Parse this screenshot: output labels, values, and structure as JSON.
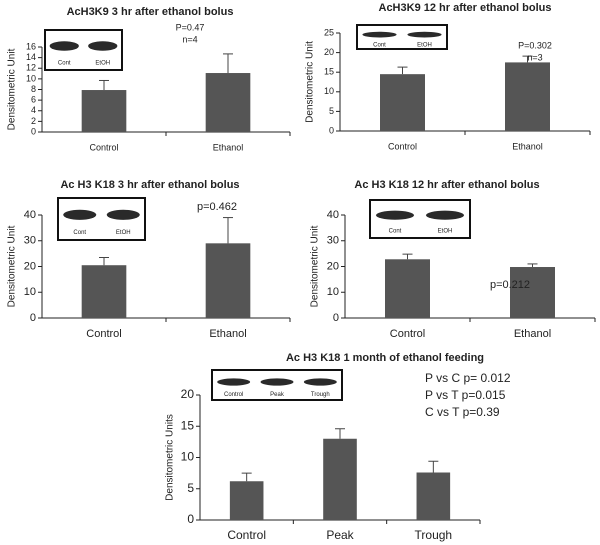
{
  "chart_data": [
    {
      "type": "bar",
      "title": "AcH3K9 3 hr after ethanol bolus",
      "y_label": "Densitometric Unit",
      "categories": [
        "Control",
        "Ethanol"
      ],
      "values": [
        7.9,
        11.1
      ],
      "errors": [
        1.8,
        3.6
      ],
      "color": "#555555",
      "ylim": [
        0,
        16
      ],
      "yticks": [
        0,
        2,
        4,
        6,
        8,
        10,
        12,
        14,
        16
      ],
      "annotations": [
        "P=0.47",
        "n=4"
      ],
      "inset_labels": [
        "Cont",
        "EtOH"
      ]
    },
    {
      "type": "bar",
      "title": "AcH3K9 12 hr after ethanol bolus",
      "y_label": "Densitometric Unit",
      "categories": [
        "Control",
        "Ethanol"
      ],
      "values": [
        14.5,
        17.5
      ],
      "errors": [
        1.8,
        1.6
      ],
      "color": "#555555",
      "ylim": [
        0,
        25
      ],
      "yticks": [
        0,
        5,
        10,
        15,
        20,
        25
      ],
      "annotations": [
        "P=0.302",
        "n=3"
      ],
      "inset_labels": [
        "Cont",
        "EtOH"
      ]
    },
    {
      "type": "bar",
      "title": "Ac H3 K18 3 hr after ethanol bolus",
      "y_label": "Densitometric Unit",
      "categories": [
        "Control",
        "Ethanol"
      ],
      "values": [
        20.5,
        29
      ],
      "errors": [
        3,
        10
      ],
      "color": "#555555",
      "ylim": [
        0,
        40
      ],
      "yticks": [
        0,
        10,
        20,
        30,
        40
      ],
      "annotations": [
        "p=0.462"
      ],
      "inset_labels": [
        "Cont",
        "EtOH"
      ]
    },
    {
      "type": "bar",
      "title": "Ac H3 K18 12 hr after ethanol bolus",
      "y_label": "Densitometric Unit",
      "categories": [
        "Control",
        "Ethanol"
      ],
      "values": [
        22.8,
        19.8
      ],
      "errors": [
        2,
        1.2
      ],
      "color": "#555555",
      "ylim": [
        0,
        40
      ],
      "yticks": [
        0,
        10,
        20,
        30,
        40
      ],
      "annotations": [
        "p=0.212"
      ],
      "inset_labels": [
        "Cont",
        "EtOH"
      ]
    },
    {
      "type": "bar",
      "title": "Ac H3 K18 1 month of ethanol feeding",
      "y_label": "Densitometric Units",
      "categories": [
        "Control",
        "Peak",
        "Trough"
      ],
      "values": [
        6.2,
        13,
        7.6
      ],
      "errors": [
        1.3,
        1.6,
        1.8
      ],
      "color": "#555555",
      "ylim": [
        0,
        20
      ],
      "yticks": [
        0,
        5,
        10,
        15,
        20
      ],
      "annotations": [
        "P vs C p= 0.012",
        "P vs T p=0.015",
        "C vs T p=0.39"
      ],
      "inset_labels": [
        "Control",
        "Peak",
        "Trough"
      ]
    }
  ]
}
